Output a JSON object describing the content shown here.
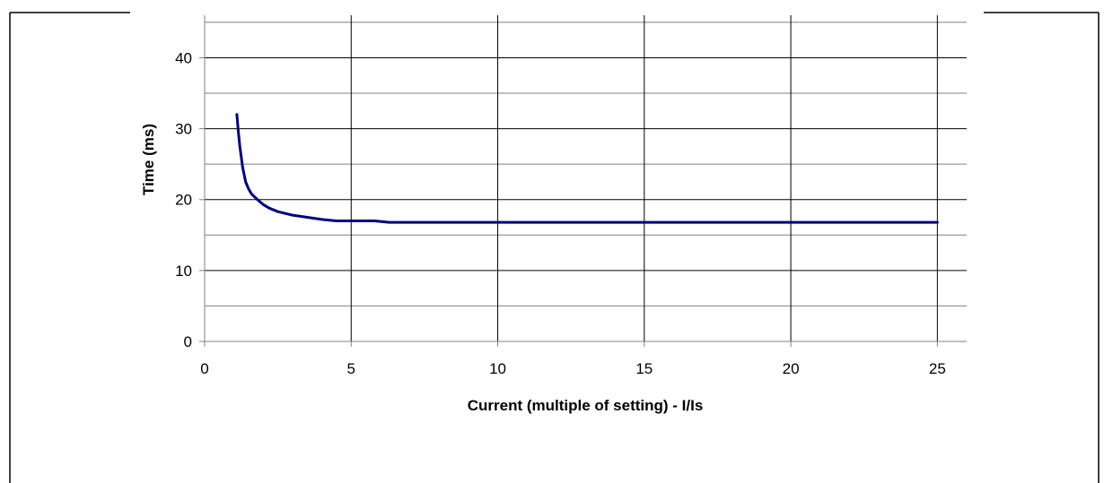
{
  "chart_data": {
    "type": "line",
    "title": "",
    "xlabel": "Current (multiple of setting) - I/Is",
    "ylabel": "Time (ms)",
    "xlim": [
      0,
      26
    ],
    "ylim": [
      0,
      46
    ],
    "x_ticks": [
      0,
      5,
      10,
      15,
      20,
      25
    ],
    "x_tick_labels": [
      "0",
      "5",
      "10",
      "15",
      "20",
      "25"
    ],
    "y_ticks": [
      0,
      10,
      20,
      30,
      40
    ],
    "y_tick_labels": [
      "0",
      "10",
      "20",
      "30",
      "40"
    ],
    "y_minor_gridlines": [
      5,
      15,
      25,
      35,
      45
    ],
    "grid": true,
    "series": [
      {
        "color": "#000080",
        "x": [
          1.1,
          1.15,
          1.2,
          1.25,
          1.3,
          1.4,
          1.5,
          1.6,
          1.8,
          2.0,
          2.2,
          2.5,
          2.8,
          3.0,
          3.5,
          4.0,
          4.5,
          5.0,
          5.8,
          6.3,
          8,
          10,
          15,
          20,
          25
        ],
        "values": [
          32.0,
          29.5,
          27.5,
          26.0,
          24.5,
          22.5,
          21.5,
          20.8,
          20.0,
          19.3,
          18.8,
          18.3,
          18.0,
          17.8,
          17.5,
          17.2,
          17.0,
          17.0,
          17.0,
          16.8,
          16.8,
          16.8,
          16.8,
          16.8,
          16.8
        ]
      }
    ],
    "frame_color": "#000000",
    "line_width": 3
  }
}
